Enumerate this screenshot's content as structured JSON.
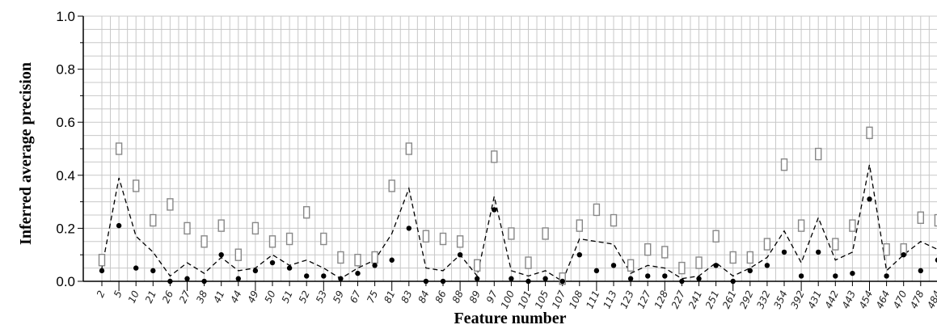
{
  "chart_data": {
    "type": "line",
    "xlabel": "Feature number",
    "ylabel": "Inferred average precision",
    "ylim": [
      0,
      1.0
    ],
    "yticks": [
      "0.0",
      "0.2",
      "0.4",
      "0.6",
      "0.8",
      "1.0"
    ],
    "grid": true,
    "categories": [
      "2",
      "5",
      "10",
      "21",
      "26",
      "27",
      "38",
      "41",
      "44",
      "49",
      "50",
      "51",
      "52",
      "53",
      "59",
      "67",
      "75",
      "81",
      "83",
      "84",
      "86",
      "88",
      "89",
      "97",
      "100",
      "101",
      "105",
      "107",
      "108",
      "111",
      "113",
      "123",
      "127",
      "128",
      "227",
      "241",
      "251",
      "261",
      "292",
      "332",
      "354",
      "392",
      "431",
      "442",
      "443",
      "454",
      "464",
      "470",
      "478",
      "484"
    ],
    "series": [
      {
        "marker": "open-rect",
        "color": "#888888",
        "values": [
          0.08,
          0.5,
          0.36,
          0.23,
          0.29,
          0.2,
          0.15,
          0.21,
          0.1,
          0.2,
          0.15,
          0.16,
          0.26,
          0.16,
          0.09,
          0.08,
          0.09,
          0.36,
          0.5,
          0.17,
          0.16,
          0.15,
          0.06,
          0.47,
          0.18,
          0.07,
          0.18,
          0.01,
          0.21,
          0.27,
          0.23,
          0.06,
          0.12,
          0.11,
          0.05,
          0.07,
          0.17,
          0.09,
          0.09,
          0.14,
          0.44,
          0.21,
          0.48,
          0.14,
          0.21,
          0.56,
          0.12,
          0.12,
          0.24,
          0.23
        ]
      },
      {
        "marker": "dashed-line",
        "color": "#000000",
        "values": [
          0.05,
          0.39,
          0.17,
          0.11,
          0.02,
          0.07,
          0.03,
          0.09,
          0.04,
          0.05,
          0.1,
          0.06,
          0.08,
          0.05,
          0.01,
          0.05,
          0.08,
          0.18,
          0.35,
          0.05,
          0.04,
          0.1,
          0.02,
          0.32,
          0.04,
          0.02,
          0.04,
          0.0,
          0.16,
          0.15,
          0.14,
          0.03,
          0.06,
          0.05,
          0.01,
          0.02,
          0.07,
          0.02,
          0.05,
          0.09,
          0.19,
          0.07,
          0.24,
          0.08,
          0.11,
          0.44,
          0.04,
          0.1,
          0.15,
          0.12
        ]
      },
      {
        "marker": "filled-circle",
        "color": "#000000",
        "values": [
          0.04,
          0.21,
          0.05,
          0.04,
          0.0,
          0.01,
          0.0,
          0.1,
          0.01,
          0.04,
          0.07,
          0.05,
          0.02,
          0.02,
          0.01,
          0.03,
          0.06,
          0.08,
          0.2,
          0.0,
          0.0,
          0.1,
          0.01,
          0.27,
          0.01,
          0.0,
          0.01,
          0.0,
          0.1,
          0.04,
          0.06,
          0.01,
          0.02,
          0.02,
          0.0,
          0.01,
          0.06,
          0.0,
          0.04,
          0.06,
          0.11,
          0.02,
          0.11,
          0.02,
          0.03,
          0.31,
          0.02,
          0.1,
          0.04,
          0.08
        ]
      }
    ]
  }
}
